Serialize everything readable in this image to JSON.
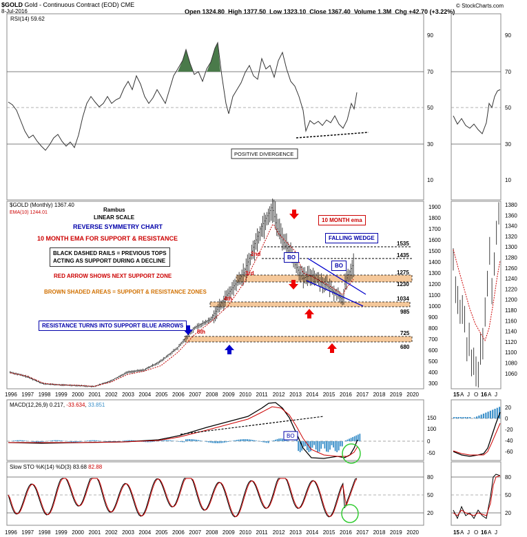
{
  "header": {
    "symbol": "$GOLD",
    "name": "Gold - Continuous Contract (EOD)",
    "exchange": "CME",
    "date": "8-Jul-2016",
    "open_label": "Open",
    "open": "1324.80",
    "high_label": "High",
    "high": "1377.50",
    "low_label": "Low",
    "low": "1323.10",
    "close_label": "Close",
    "close": "1367.40",
    "volume_label": "Volume",
    "volume": "1.3M",
    "chg_label": "Chg",
    "chg": "+42.70 (+3.22%)",
    "credit": "© StockCharts.com"
  },
  "colors": {
    "rsi_fill": "#4a7a4a",
    "ema": "#c00000",
    "macd_hist": "#3a8fc9",
    "support_band": "#f5c89a",
    "trend_blue": "#0000cc",
    "circle": "#33cc33"
  },
  "rsi_panel": {
    "label": "RSI(14) 59.62",
    "levels": [
      "90",
      "70",
      "50",
      "30",
      "10"
    ],
    "callout": "POSITIVE DIVERGENCE"
  },
  "price_panel": {
    "label": "$GOLD (Monthly) 1367.40",
    "ema_label": "EMA(10) 1244.01",
    "author": "Rambus",
    "scale": "LINEAR SCALE",
    "title1": "REVERSE SYMMETRY CHART",
    "title2": "10 MONTH EMA FOR SUPPORT & RESISTANCE",
    "note1a": "BLACK DASHED RAILS = PREVIOUS TOPS",
    "note1b": "ACTING AS SUPPORT DURING A DECLINE",
    "note2": "RED ARROW SHOWS NEXT SUPPORT ZONE",
    "note3": "BROWN SHADED AREAS = SUPPORT & RESISTANCE ZONES",
    "note4": "RESISTANCE TURNS INTO SUPPORT BLUE ARROWS",
    "ema_callout": "10 MONTH ema",
    "wedge_callout": "FALLING WEDGE",
    "bo1": "BO",
    "bo2": "BO",
    "tops": [
      "2nd",
      "3rd",
      "4th",
      "5th"
    ],
    "levels": [
      "1535",
      "1435",
      "1275",
      "1230",
      "1034",
      "985",
      "725",
      "680"
    ],
    "yticks": [
      "1900",
      "1800",
      "1700",
      "1600",
      "1500",
      "1400",
      "1300",
      "1200",
      "1100",
      "1000",
      "900",
      "800",
      "700",
      "600",
      "500",
      "400",
      "300"
    ],
    "yticks_right": [
      "1380",
      "1360",
      "1340",
      "1320",
      "1300",
      "1280",
      "1260",
      "1240",
      "1220",
      "1200",
      "1180",
      "1160",
      "1140",
      "1120",
      "1100",
      "1080",
      "1060"
    ]
  },
  "macd_panel": {
    "label": "MACD(12,26,9)",
    "v1": "0.217",
    "v2": "-33.634",
    "v3": "33.851",
    "bo": "BO",
    "yticks": [
      "150",
      "100",
      "50",
      "0",
      "-50"
    ],
    "yticks_right": [
      "20",
      "0",
      "-20",
      "-40",
      "-60"
    ]
  },
  "sto_panel": {
    "label": "Slow STO %K(14) %D(3)",
    "k": "83.68",
    "d": "82.88",
    "yticks": [
      "80",
      "50",
      "20"
    ],
    "yticks_right": [
      "80",
      "50",
      "20"
    ]
  },
  "x_axis": {
    "years": [
      "1996",
      "1997",
      "1998",
      "1999",
      "2000",
      "2001",
      "2002",
      "2003",
      "2004",
      "2005",
      "2006",
      "2007",
      "2008",
      "2009",
      "2010",
      "2011",
      "2012",
      "2013",
      "2014",
      "2015",
      "2016",
      "2017",
      "2018",
      "2019",
      "2020"
    ],
    "right_labels": [
      "15",
      "A",
      "J",
      "O",
      "16",
      "A",
      "J"
    ]
  },
  "chart_data": {
    "type": "line",
    "title": "$GOLD (Monthly)",
    "x": [
      1996,
      1997,
      1998,
      1999,
      2000,
      2001,
      2002,
      2003,
      2004,
      2005,
      2006,
      2007,
      2008,
      2009,
      2010,
      2011,
      2011.7,
      2012,
      2013,
      2013.5,
      2014,
      2015,
      2015.9,
      2016,
      2016.5
    ],
    "series": [
      {
        "name": "$GOLD (Monthly)",
        "values": [
          400,
          360,
          295,
          285,
          280,
          270,
          320,
          400,
          420,
          500,
          620,
          800,
          880,
          1100,
          1300,
          1700,
          1900,
          1700,
          1400,
          1250,
          1280,
          1180,
          1060,
          1200,
          1367.4
        ]
      },
      {
        "name": "EMA(10)",
        "values": [
          395,
          365,
          300,
          285,
          282,
          272,
          310,
          380,
          410,
          460,
          580,
          740,
          860,
          1000,
          1220,
          1520,
          1750,
          1660,
          1500,
          1300,
          1270,
          1190,
          1100,
          1150,
          1244.01
        ]
      }
    ],
    "ylim": [
      250,
      1950
    ]
  }
}
